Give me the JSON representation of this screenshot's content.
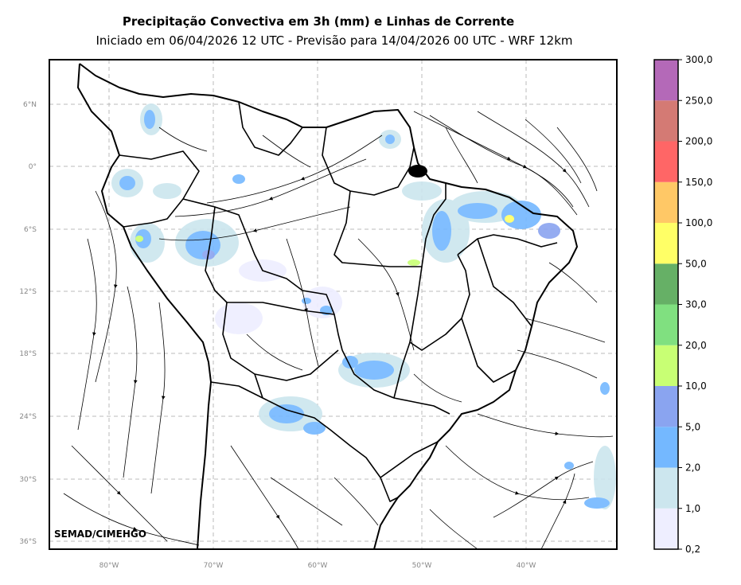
{
  "title": "Precipitação Convectiva em 3h (mm) e Linhas de Corrente",
  "subtitle": "Iniciado em 06/04/2026 12 UTC - Previsão para 14/04/2026 00 UTC - WRF 12km",
  "credit": "SEMAD/CIMEHGO",
  "lat_ticks": [
    "6°N",
    "0°",
    "6°S",
    "12°S",
    "18°S",
    "24°S",
    "30°S",
    "36°S"
  ],
  "lon_ticks": [
    "80°W",
    "70°W",
    "60°W",
    "50°W",
    "40°W"
  ],
  "colorbar": {
    "labels": [
      "0,2",
      "1,0",
      "2,0",
      "5,0",
      "10,0",
      "20,0",
      "30,0",
      "50,0",
      "100,0",
      "150,0",
      "200,0",
      "250,0",
      "300,0"
    ],
    "colors": [
      "#eeeeff",
      "#cce6ee",
      "#74b8ff",
      "#8aa4f0",
      "#c8ff74",
      "#80e080",
      "#66b066",
      "#ffff66",
      "#ffc866",
      "#ff6666",
      "#d47a74",
      "#b469b8"
    ]
  }
}
